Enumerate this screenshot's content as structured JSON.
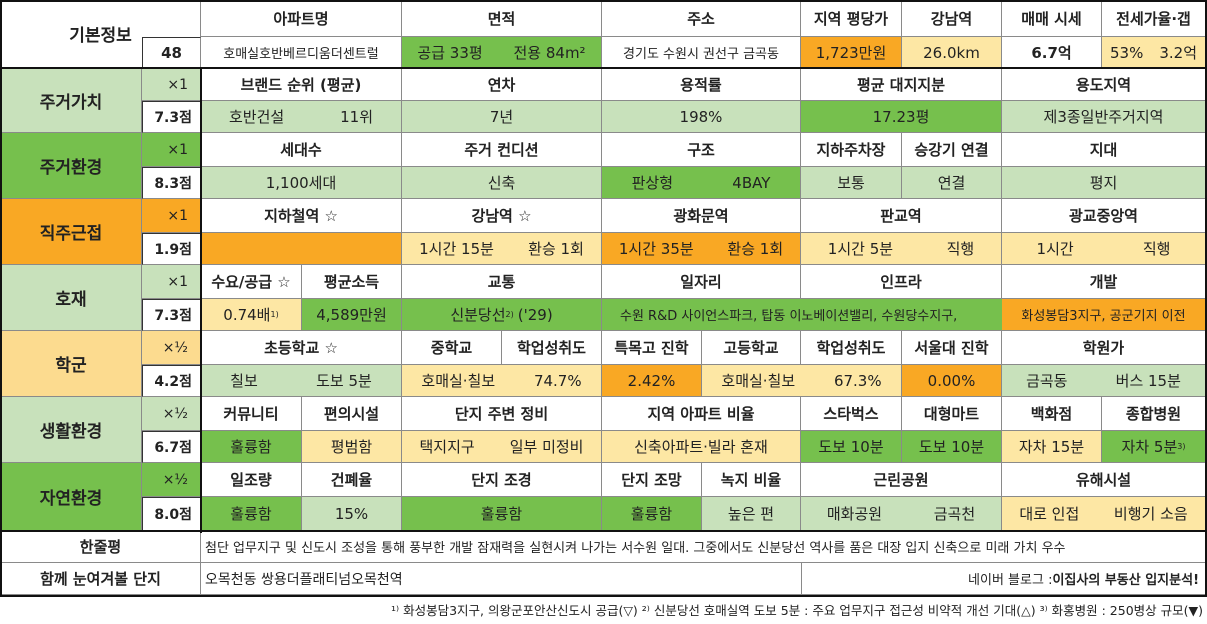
{
  "colors": {
    "green_light": "#c8e1bb",
    "green_dark": "#76c04d",
    "orange": "#f9a824",
    "yellow": "#fde7a4",
    "yellow_cat": "#fcdb8f",
    "white": "#ffffff"
  },
  "header": {
    "label": "기본정보",
    "number": "48",
    "cols": [
      "아파트명",
      "면적",
      "주소",
      "지역 평당가",
      "강남역",
      "매매 시세",
      "전세가율·갭"
    ],
    "vals": {
      "name": "호매실호반베르디움더센트럴",
      "area_a": "공급 33평",
      "area_b": "전용 84m²",
      "addr": "경기도 수원시 권선구 금곡동",
      "price_per_py": "1,723만원",
      "gangnam": "26.0km",
      "sale": "6.7억",
      "jeonse_a": "53%",
      "jeonse_b": "3.2억"
    }
  },
  "rows": [
    {
      "cat": "주거가치",
      "mult": "×1",
      "score": "7.3점",
      "heads": [
        "브랜드 순위 (평균)",
        "연차",
        "용적률",
        "평균 대지지분",
        "용도지역"
      ],
      "vals": [
        "호반건설",
        "11위",
        "7년",
        "198%",
        "17.23평",
        "제3종일반주거지역"
      ]
    },
    {
      "cat": "주거환경",
      "mult": "×1",
      "score": "8.3점",
      "heads": [
        "세대수",
        "주거 컨디션",
        "구조",
        "지하주차장",
        "승강기 연결",
        "지대"
      ],
      "vals": [
        "1,100세대",
        "신축",
        "판상형",
        "4BAY",
        "보통",
        "연결",
        "평지"
      ]
    },
    {
      "cat": "직주근접",
      "mult": "×1",
      "score": "1.9점",
      "heads": [
        "지하철역 ☆",
        "강남역 ☆",
        "광화문역",
        "판교역",
        "광교중앙역"
      ],
      "vals": [
        "",
        "1시간 15분",
        "환승 1회",
        "1시간 35분",
        "환승 1회",
        "1시간 5분",
        "직행",
        "1시간",
        "직행"
      ]
    },
    {
      "cat": "호재",
      "mult": "×1",
      "score": "7.3점",
      "heads": [
        "수요/공급 ☆",
        "평균소득",
        "교통",
        "일자리",
        "인프라",
        "개발"
      ],
      "vals": [
        "0.74배",
        "4,589만원",
        "신분당선",
        "('29)",
        "수원 R&D 사이언스파크, 탑동 이노베이션밸리, 수원당수지구,",
        "화성봉담3지구, 공군기지 이전"
      ],
      "sups": [
        "1)",
        "2)"
      ]
    },
    {
      "cat": "학군",
      "mult": "×½",
      "score": "4.2점",
      "heads": [
        "초등학교 ☆",
        "중학교",
        "학업성취도",
        "특목고 진학",
        "고등학교",
        "학업성취도",
        "서울대 진학",
        "학원가"
      ],
      "vals": [
        "칠보",
        "도보 5분",
        "호매실·칠보",
        "74.7%",
        "2.42%",
        "호매실·칠보",
        "67.3%",
        "0.00%",
        "금곡동",
        "버스 15분"
      ]
    },
    {
      "cat": "생활환경",
      "mult": "×½",
      "score": "6.7점",
      "heads": [
        "커뮤니티",
        "편의시설",
        "단지 주변 정비",
        "지역 아파트 비율",
        "스타벅스",
        "대형마트",
        "백화점",
        "종합병원"
      ],
      "vals": [
        "훌륭함",
        "평범함",
        "택지지구",
        "일부 미정비",
        "신축아파트·빌라 혼재",
        "도보 10분",
        "도보 10분",
        "자차 15분",
        "자차 5분"
      ],
      "sups": [
        "3)"
      ]
    },
    {
      "cat": "자연환경",
      "mult": "×½",
      "score": "8.0점",
      "heads": [
        "일조량",
        "건폐율",
        "단지 조경",
        "단지 조망",
        "녹지 비율",
        "근린공원",
        "유해시설"
      ],
      "vals": [
        "훌륭함",
        "15%",
        "훌륭함",
        "훌륭함",
        "높은 편",
        "매화공원",
        "금곡천",
        "대로 인접",
        "비행기 소음"
      ]
    }
  ],
  "summary": {
    "label": "한줄평",
    "text": "첨단 업무지구 및 신도시 조성을 통해 풍부한 개발 잠재력을 실현시켜 나가는 서수원 일대. 그중에서도 신분당선 역사를 품은 대장 입지 신축으로 미래 가치 우수"
  },
  "related": {
    "label": "함께 눈여겨볼 단지",
    "text": "오목천동 쌍용더플래티넘오목천역",
    "blog_prefix": "네이버 블로그 : ",
    "blog_name": "이집사의 부동산 입지분석!"
  },
  "footnote": "¹⁾ 화성봉담3지구, 의왕군포안산신도시 공급(▽) ²⁾ 신분당선 호매실역 도보 5분 : 주요 업무지구 접근성 비약적 개선 기대(△) ³⁾ 화홍병원 : 250병상 규모(▼)"
}
